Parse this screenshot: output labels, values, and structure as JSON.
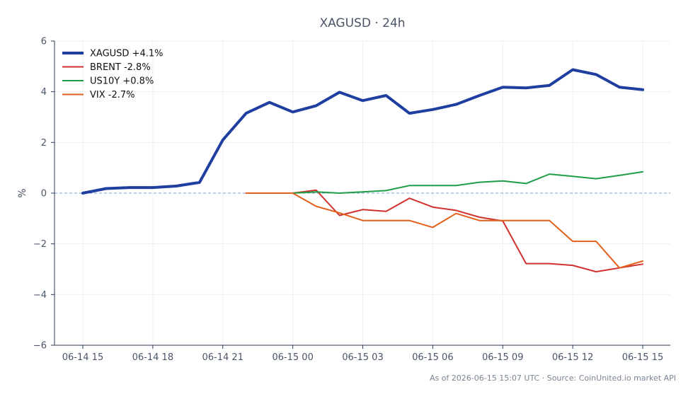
{
  "chart_data": {
    "type": "line",
    "title": "XAGUSD · 24h",
    "xlabel": "",
    "ylabel": "%",
    "ylim": [
      -6,
      6
    ],
    "yticks": [
      -6,
      -4,
      -2,
      0,
      2,
      4,
      6
    ],
    "ytick_labels": [
      "−6",
      "−4",
      "−2",
      "0",
      "2",
      "4",
      "6"
    ],
    "xlim": [
      -0.3,
      7.3
    ],
    "xticks": [
      0,
      1,
      2,
      3,
      4,
      5,
      6,
      7,
      8
    ],
    "xtick_labels": [
      "06-14 15",
      "06-14 18",
      "06-14 21",
      "06-15 00",
      "06-15 03",
      "06-15 06",
      "06-15 09",
      "06-15 12",
      "06-15 15"
    ],
    "grid": true,
    "zero_line": true,
    "legend_position": "top-left",
    "series": [
      {
        "name": "XAGUSD +4.1%",
        "color": "#1f3fa0",
        "width": 4,
        "x": [
          0,
          0.333,
          0.667,
          1,
          1.333,
          1.667,
          2,
          2.333,
          2.667,
          3,
          3.333,
          3.667,
          4,
          4.333,
          4.667,
          5,
          5.333,
          5.667,
          6,
          6.333,
          6.667,
          7,
          7.333,
          7.667,
          8
        ],
        "y": [
          0.0,
          0.18,
          0.22,
          0.22,
          0.28,
          0.42,
          2.1,
          3.15,
          3.58,
          3.2,
          3.45,
          3.98,
          3.65,
          3.85,
          3.15,
          3.3,
          3.5,
          3.85,
          4.18,
          4.15,
          4.25,
          4.87,
          4.68,
          4.18,
          4.08
        ]
      },
      {
        "name": "BRENT -2.8%",
        "color": "#d0312d",
        "width": 2,
        "x": [
          2.333,
          2.667,
          3,
          3.333,
          3.667,
          4,
          4.333,
          4.667,
          5,
          5.333,
          5.667,
          6,
          6.333,
          6.667,
          7,
          7.333,
          7.667,
          8
        ],
        "y": [
          0.0,
          0.0,
          0.0,
          0.12,
          -0.88,
          -0.65,
          -0.72,
          -0.2,
          -0.55,
          -0.68,
          -0.95,
          -1.1,
          -2.78,
          -2.78,
          -2.85,
          -3.1,
          -2.95,
          -2.8
        ]
      },
      {
        "name": "US10Y +0.8%",
        "color": "#1f9e46",
        "width": 2,
        "x": [
          3,
          3.333,
          3.667,
          4,
          4.333,
          4.667,
          5,
          5.333,
          5.667,
          6,
          6.333,
          6.667,
          7,
          7.333,
          7.667,
          8
        ],
        "y": [
          0.0,
          0.05,
          0.0,
          0.05,
          0.1,
          0.3,
          0.3,
          0.3,
          0.43,
          0.48,
          0.38,
          0.75,
          0.66,
          0.57,
          0.7,
          0.84
        ]
      },
      {
        "name": "VIX -2.7%",
        "color": "#e3601b",
        "width": 2,
        "x": [
          2.333,
          2.667,
          3,
          3.333,
          3.667,
          4,
          4.333,
          4.667,
          5,
          5.333,
          5.667,
          6,
          6.333,
          6.667,
          7,
          7.333,
          7.667,
          8
        ],
        "y": [
          0.0,
          0.0,
          0.0,
          -0.52,
          -0.78,
          -1.08,
          -1.08,
          -1.08,
          -1.35,
          -0.8,
          -1.08,
          -1.08,
          -1.08,
          -1.08,
          -1.9,
          -1.9,
          -2.95,
          -2.68
        ]
      }
    ]
  },
  "footer": "As of 2026-06-15 15:07 UTC · Source: CoinUnited.io market API"
}
